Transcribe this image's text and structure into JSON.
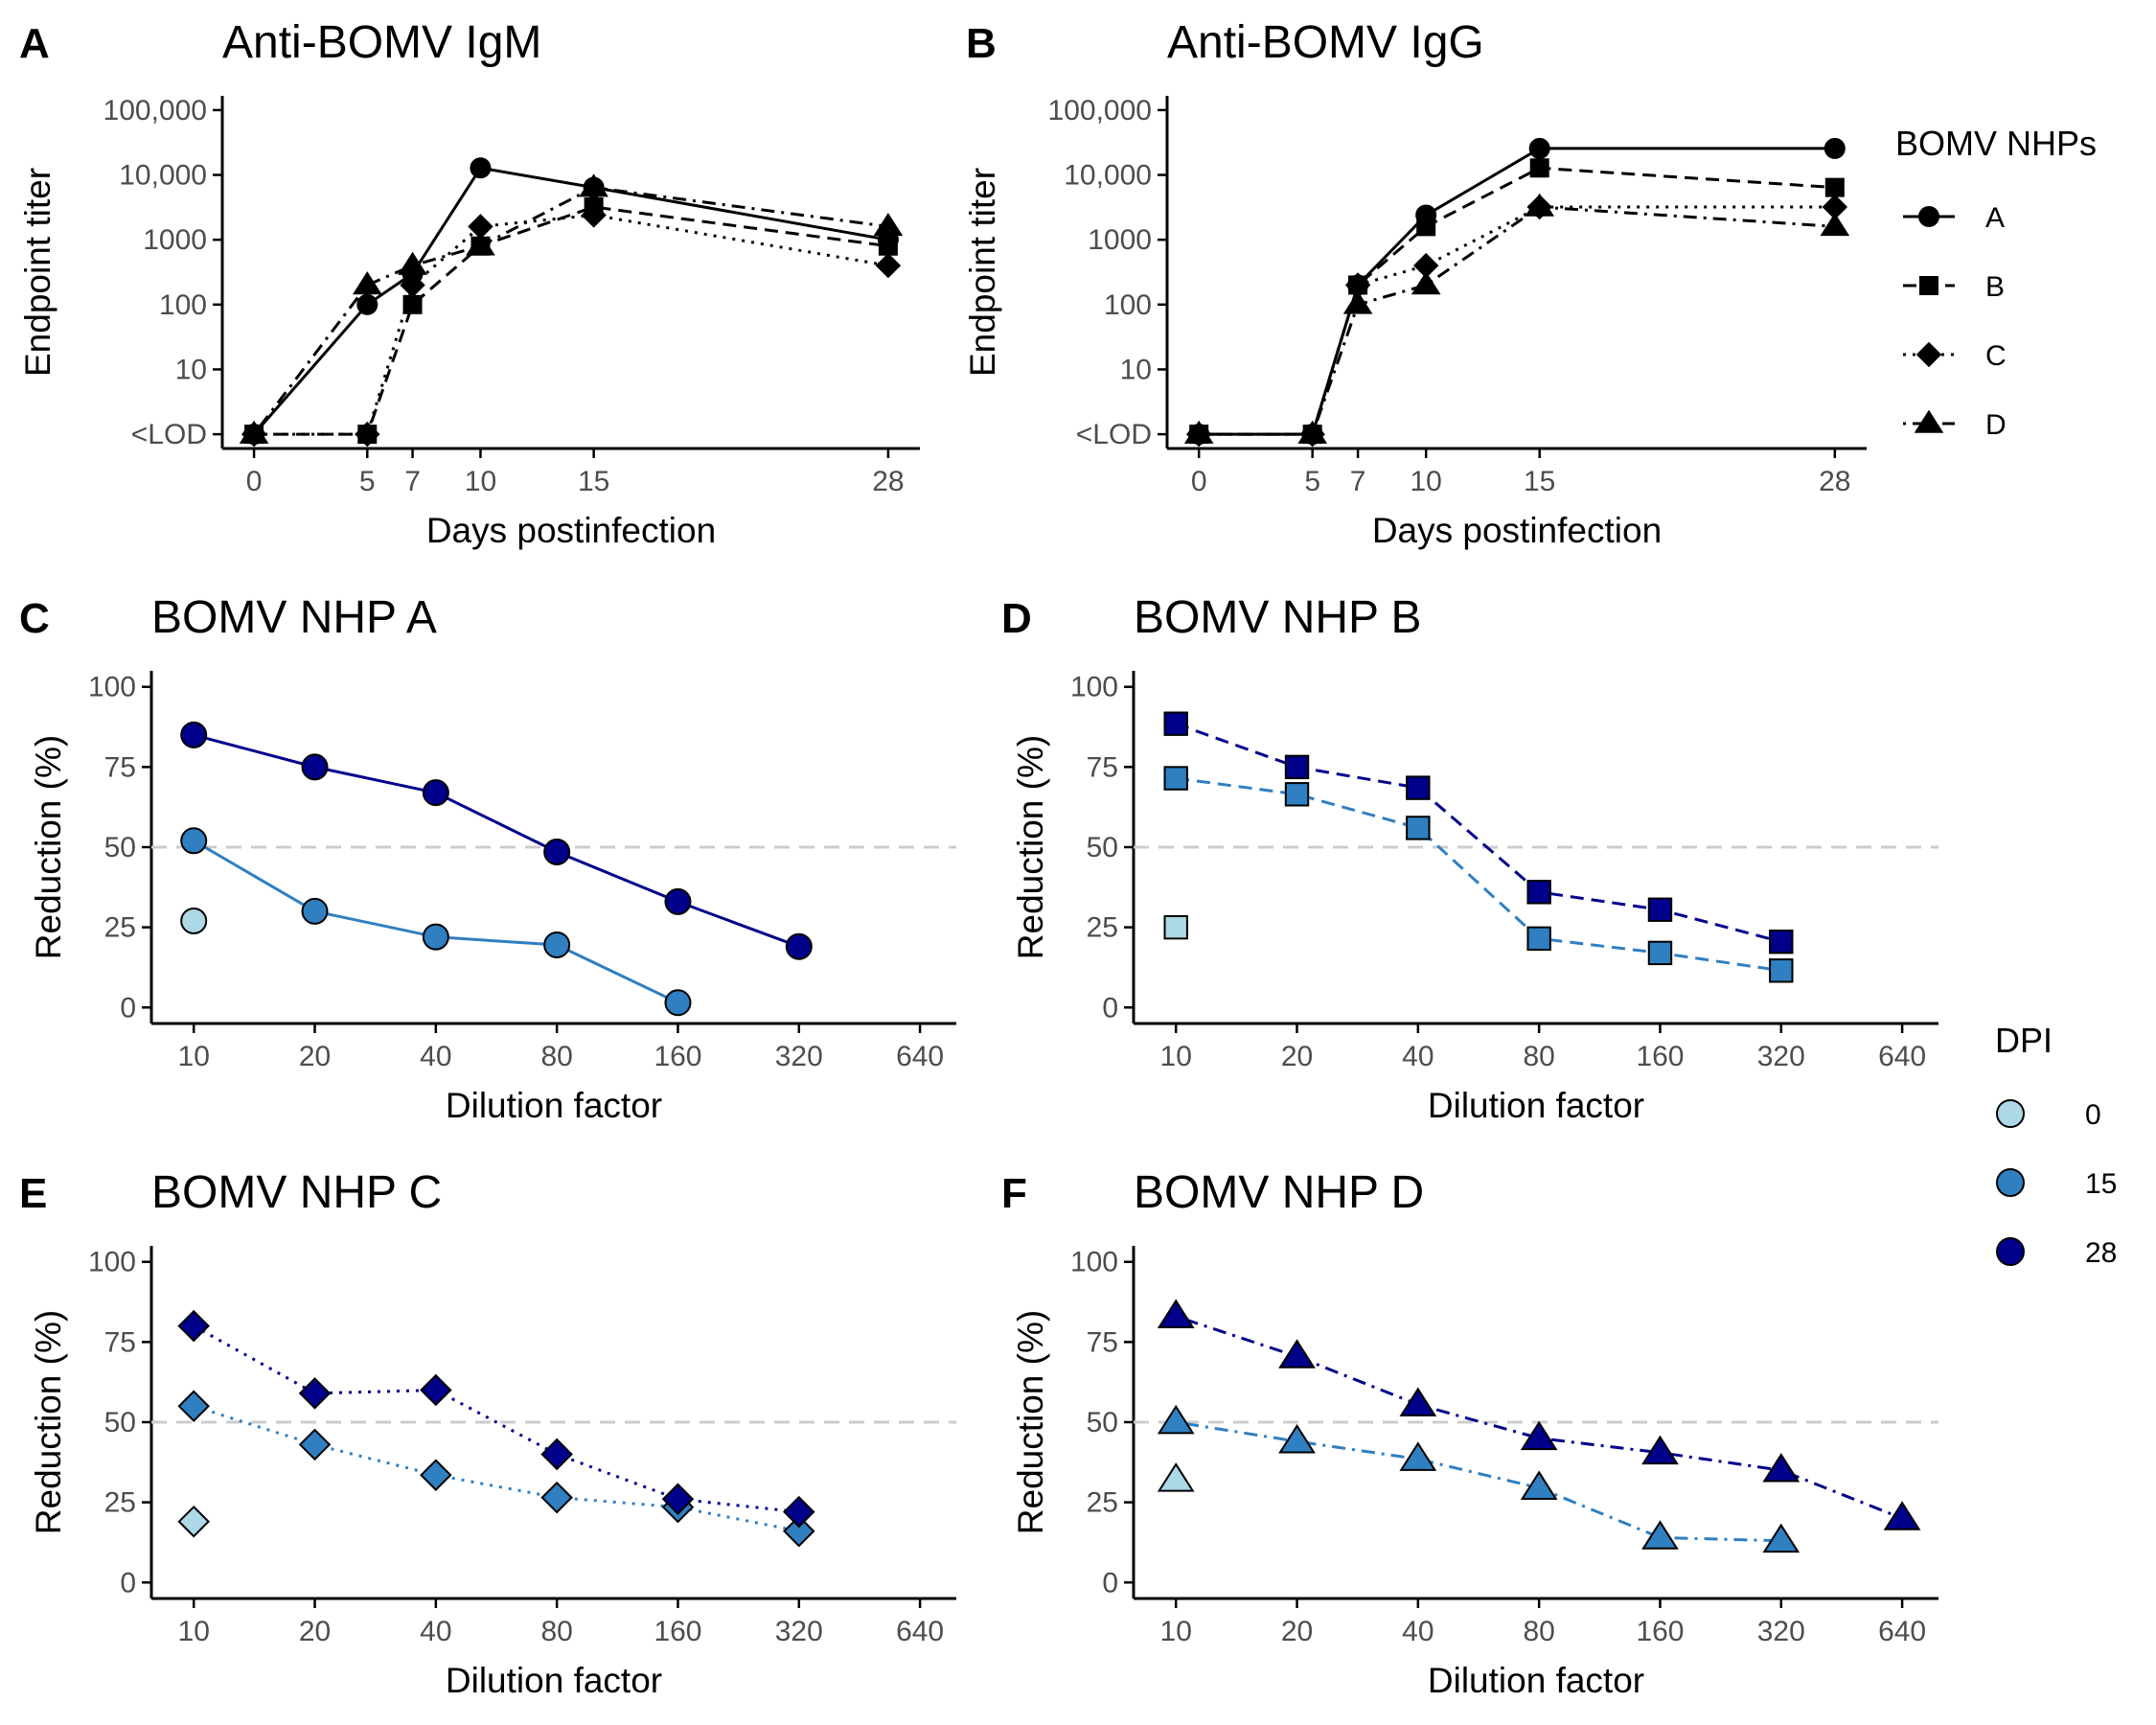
{
  "chart_data": [
    {
      "panel": "A",
      "type": "line",
      "title": "Anti-BOMV IgM",
      "xlabel": "Days postinfection",
      "ylabel": "Endpoint titer",
      "y_scale": "log10",
      "x_ticks": [
        0,
        5,
        7,
        10,
        15,
        28
      ],
      "y_ticks": [
        "<LOD",
        "10",
        "100",
        "1000",
        "10,000",
        "100,000"
      ],
      "x": [
        0,
        5,
        7,
        10,
        15,
        28
      ],
      "series": [
        {
          "name": "A",
          "values": [
            "<LOD",
            100,
            300,
            12800,
            6400,
            1000
          ]
        },
        {
          "name": "B",
          "values": [
            "<LOD",
            "<LOD",
            100,
            800,
            3200,
            800
          ]
        },
        {
          "name": "C",
          "values": [
            "<LOD",
            "<LOD",
            200,
            1600,
            2400,
            400
          ]
        },
        {
          "name": "D",
          "values": [
            "<LOD",
            200,
            400,
            800,
            6400,
            1600
          ]
        }
      ]
    },
    {
      "panel": "B",
      "type": "line",
      "title": "Anti-BOMV IgG",
      "xlabel": "Days postinfection",
      "ylabel": "Endpoint titer",
      "y_scale": "log10",
      "x_ticks": [
        0,
        5,
        7,
        10,
        15,
        28
      ],
      "y_ticks": [
        "<LOD",
        "10",
        "100",
        "1000",
        "10,000",
        "100,000"
      ],
      "x": [
        0,
        5,
        7,
        10,
        15,
        28
      ],
      "series": [
        {
          "name": "A",
          "values": [
            "<LOD",
            "<LOD",
            200,
            2400,
            25600,
            25600
          ]
        },
        {
          "name": "B",
          "values": [
            "<LOD",
            "<LOD",
            200,
            1600,
            12800,
            6400
          ]
        },
        {
          "name": "C",
          "values": [
            "<LOD",
            "<LOD",
            200,
            400,
            3200,
            3200
          ]
        },
        {
          "name": "D",
          "values": [
            "<LOD",
            "<LOD",
            100,
            200,
            3200,
            1600
          ]
        }
      ]
    },
    {
      "panel": "C",
      "type": "line",
      "title": "BOMV NHP A",
      "xlabel": "Dilution factor",
      "ylabel": "Reduction (%)",
      "x_scale": "log2",
      "categories": [
        "10",
        "20",
        "40",
        "80",
        "160",
        "320",
        "640"
      ],
      "ylim": [
        0,
        100
      ],
      "y_ticks": [
        0,
        25,
        50,
        75,
        100
      ],
      "reference_line": 50,
      "series": [
        {
          "name": "0",
          "values": [
            27,
            null,
            null,
            null,
            null,
            null,
            null
          ]
        },
        {
          "name": "15",
          "values": [
            52,
            30,
            22,
            19.5,
            1.5,
            null,
            null
          ]
        },
        {
          "name": "28",
          "values": [
            85,
            75,
            67,
            48.5,
            33,
            19,
            null
          ]
        }
      ]
    },
    {
      "panel": "D",
      "type": "line",
      "title": "BOMV NHP B",
      "xlabel": "Dilution factor",
      "ylabel": "Reduction (%)",
      "x_scale": "log2",
      "categories": [
        "10",
        "20",
        "40",
        "80",
        "160",
        "320",
        "640"
      ],
      "ylim": [
        0,
        100
      ],
      "y_ticks": [
        0,
        25,
        50,
        75,
        100
      ],
      "reference_line": 50,
      "series": [
        {
          "name": "0",
          "values": [
            25,
            null,
            null,
            null,
            null,
            null,
            null
          ]
        },
        {
          "name": "15",
          "values": [
            71.5,
            66.5,
            56,
            21.5,
            17,
            11.5,
            null
          ]
        },
        {
          "name": "28",
          "values": [
            88.5,
            75,
            68.5,
            36,
            30.5,
            20.5,
            null
          ]
        }
      ]
    },
    {
      "panel": "E",
      "type": "line",
      "title": "BOMV NHP C",
      "xlabel": "Dilution factor",
      "ylabel": "Reduction (%)",
      "x_scale": "log2",
      "categories": [
        "10",
        "20",
        "40",
        "80",
        "160",
        "320",
        "640"
      ],
      "ylim": [
        0,
        100
      ],
      "y_ticks": [
        0,
        25,
        50,
        75,
        100
      ],
      "reference_line": 50,
      "series": [
        {
          "name": "0",
          "values": [
            19,
            null,
            null,
            null,
            null,
            null,
            null
          ]
        },
        {
          "name": "15",
          "values": [
            55,
            43,
            33.5,
            26.5,
            23.5,
            16,
            null
          ]
        },
        {
          "name": "28",
          "values": [
            80,
            59,
            60,
            40,
            26,
            22,
            null
          ]
        }
      ]
    },
    {
      "panel": "F",
      "type": "line",
      "title": "BOMV NHP D",
      "xlabel": "Dilution factor",
      "ylabel": "Reduction (%)",
      "x_scale": "log2",
      "categories": [
        "10",
        "20",
        "40",
        "80",
        "160",
        "320",
        "640"
      ],
      "ylim": [
        0,
        100
      ],
      "y_ticks": [
        0,
        25,
        50,
        75,
        100
      ],
      "reference_line": 50,
      "series": [
        {
          "name": "0",
          "values": [
            32,
            null,
            null,
            null,
            null,
            null,
            null
          ]
        },
        {
          "name": "15",
          "values": [
            50,
            44,
            38.5,
            29.5,
            14,
            13,
            null
          ]
        },
        {
          "name": "28",
          "values": [
            83,
            70.5,
            55.5,
            45,
            40.5,
            35,
            20
          ]
        }
      ]
    }
  ],
  "legends": {
    "nhp": {
      "title": "BOMV NHPs",
      "entries": [
        {
          "label": "A",
          "shape": "circle",
          "linetype": "solid"
        },
        {
          "label": "B",
          "shape": "square",
          "linetype": "dashed"
        },
        {
          "label": "C",
          "shape": "diamond",
          "linetype": "dotted"
        },
        {
          "label": "D",
          "shape": "triangle",
          "linetype": "dotdash"
        }
      ]
    },
    "dpi": {
      "title": "DPI",
      "entries": [
        {
          "label": "0",
          "color": "#add8e6"
        },
        {
          "label": "15",
          "color": "#2f7fc1"
        },
        {
          "label": "28",
          "color": "#00008b"
        }
      ]
    }
  },
  "colors": {
    "dpi_0": "#add8e6",
    "dpi_15": "#2f7fc1",
    "dpi_28": "#00008b",
    "titer_series": "#000000",
    "reference_line": "#cccccc"
  }
}
